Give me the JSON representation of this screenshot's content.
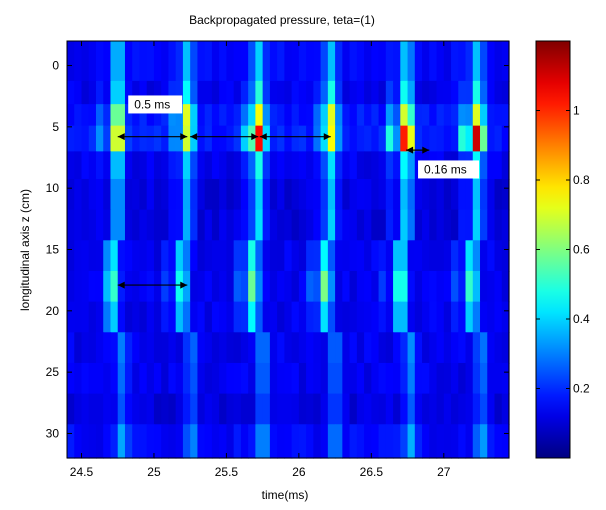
{
  "chart_data": {
    "type": "heatmap",
    "title": "Backpropagated pressure, teta=(1)",
    "xlabel": "time(ms)",
    "ylabel": "longitudinal axis z (cm)",
    "xlim": [
      24.4,
      27.45
    ],
    "ylim": [
      -2,
      32
    ],
    "x_ticks": [
      24.5,
      25,
      25.5,
      26,
      26.5,
      27
    ],
    "x_tick_labels": [
      "24.5",
      "25",
      "25.5",
      "26",
      "26.5",
      "27"
    ],
    "y_ticks": [
      0,
      5,
      10,
      15,
      20,
      25,
      30
    ],
    "y_tick_labels": [
      "0",
      "5",
      "10",
      "15",
      "20",
      "25",
      "30"
    ],
    "y_reversed": true,
    "colormap": "jet",
    "clim": [
      0,
      1.2
    ],
    "colorbar_ticks": [
      0.2,
      0.4,
      0.6,
      0.8,
      1
    ],
    "colorbar_tick_labels": [
      "0.2",
      "0.4",
      "0.6",
      "0.8",
      "1"
    ],
    "pulse_times": [
      24.75,
      25.23,
      25.72,
      26.22,
      26.74,
      27.23
    ],
    "rows": [
      {
        "z": 0,
        "base": 0.12,
        "peak": [
          0.42,
          0.38,
          0.4,
          0.38,
          0.4,
          0.38
        ]
      },
      {
        "z": 2.5,
        "base": 0.1,
        "peak": [
          0.48,
          0.45,
          0.5,
          0.48,
          0.5,
          0.48
        ]
      },
      {
        "z": 3.8,
        "base": 0.14,
        "peak": [
          0.7,
          0.72,
          0.75,
          0.72,
          0.75,
          0.72
        ]
      },
      {
        "z": 6,
        "base": 0.15,
        "peak": [
          0.85,
          0.7,
          1.05,
          0.75,
          1.1,
          1.12
        ]
      },
      {
        "z": 8,
        "base": 0.1,
        "peak": [
          0.45,
          0.4,
          0.48,
          0.42,
          0.48,
          0.45
        ]
      },
      {
        "z": 10.5,
        "base": 0.08,
        "peak": [
          0.38,
          0.35,
          0.4,
          0.38,
          0.4,
          0.38
        ]
      },
      {
        "z": 13,
        "base": 0.08,
        "peak": [
          0.38,
          0.36,
          0.42,
          0.4,
          0.42,
          0.4
        ]
      },
      {
        "z": 15.5,
        "base": 0.1,
        "peak": [
          0.45,
          0.42,
          0.48,
          0.45,
          0.46,
          0.45
        ]
      },
      {
        "z": 18,
        "base": 0.1,
        "peak": [
          0.55,
          0.5,
          0.58,
          0.6,
          0.58,
          0.55
        ]
      },
      {
        "z": 20.5,
        "base": 0.1,
        "peak": [
          0.42,
          0.4,
          0.45,
          0.42,
          0.45,
          0.42
        ]
      },
      {
        "z": 23,
        "base": 0.1,
        "peak": [
          0.3,
          0.28,
          0.32,
          0.3,
          0.32,
          0.3
        ]
      },
      {
        "z": 25.5,
        "base": 0.1,
        "peak": [
          0.28,
          0.26,
          0.3,
          0.28,
          0.3,
          0.28
        ]
      },
      {
        "z": 28,
        "base": 0.08,
        "peak": [
          0.25,
          0.24,
          0.26,
          0.25,
          0.26,
          0.25
        ]
      },
      {
        "z": 30.5,
        "base": 0.12,
        "peak": [
          0.35,
          0.32,
          0.35,
          0.32,
          0.36,
          0.35
        ]
      }
    ],
    "annotations": [
      {
        "name": "interval-0.5ms",
        "text": "0.5 ms",
        "x_text": 24.85,
        "y_text": 3.5
      },
      {
        "name": "interval-0.16ms",
        "text": "0.16 ms",
        "x_text": 26.85,
        "y_text": 8.8
      }
    ],
    "arrows": [
      {
        "name": "arrow-1",
        "x1": 24.75,
        "x2": 25.23,
        "y": 5.8
      },
      {
        "name": "arrow-2",
        "x1": 25.25,
        "x2": 25.72,
        "y": 5.8
      },
      {
        "name": "arrow-3",
        "x1": 25.73,
        "x2": 26.22,
        "y": 5.8
      },
      {
        "name": "arrow-4",
        "x1": 26.74,
        "x2": 26.9,
        "y": 6.9
      },
      {
        "name": "arrow-5",
        "x1": 24.75,
        "x2": 25.23,
        "y": 17.9
      }
    ]
  }
}
